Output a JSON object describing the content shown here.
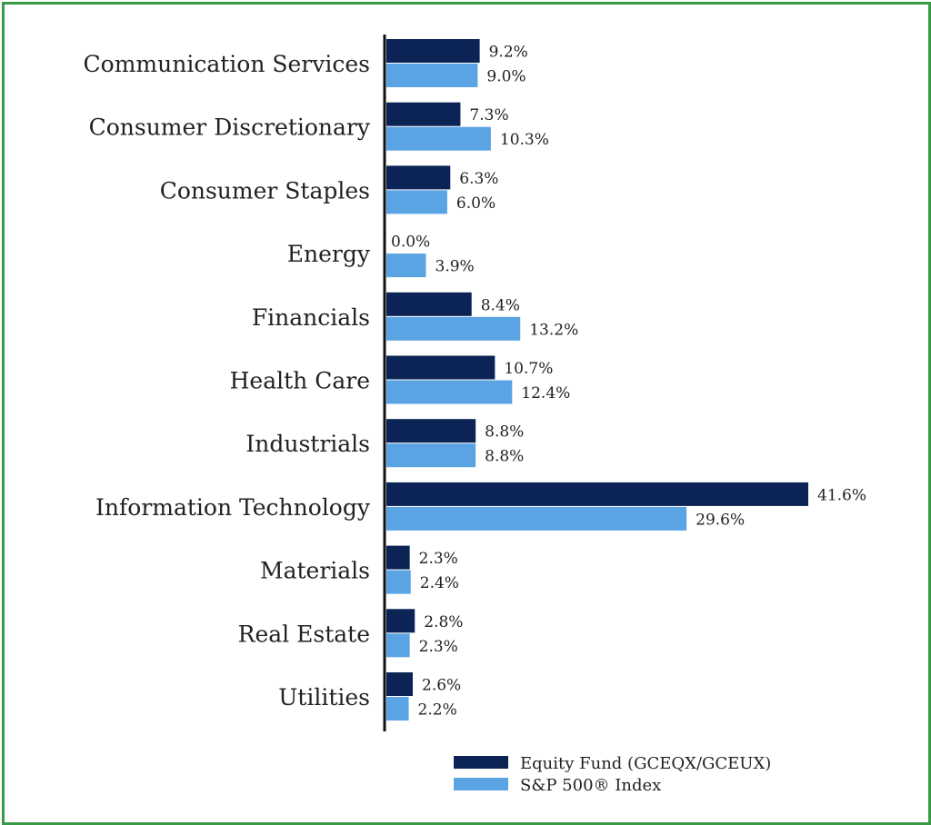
{
  "chart_data": {
    "type": "bar",
    "orientation": "horizontal",
    "categories": [
      "Communication Services",
      "Consumer Discretionary",
      "Consumer Staples",
      "Energy",
      "Financials",
      "Health Care",
      "Industrials",
      "Information Technology",
      "Materials",
      "Real Estate",
      "Utilities"
    ],
    "series": [
      {
        "name": "Equity Fund (GCEQX/GCEUX)",
        "color": "#0b2455",
        "values": [
          9.2,
          7.3,
          6.3,
          0.0,
          8.4,
          10.7,
          8.8,
          41.6,
          2.3,
          2.8,
          2.6
        ],
        "labels": [
          "9.2%",
          "7.3%",
          "6.3%",
          "0.0%",
          "8.4%",
          "10.7%",
          "8.8%",
          "41.6%",
          "2.3%",
          "2.8%",
          "2.6%"
        ]
      },
      {
        "name": "S&P 500® Index",
        "color": "#5ba4e4",
        "values": [
          9.0,
          10.3,
          6.0,
          3.9,
          13.2,
          12.4,
          8.8,
          29.6,
          2.4,
          2.3,
          2.2
        ],
        "labels": [
          "9.0%",
          "10.3%",
          "6.0%",
          "3.9%",
          "13.2%",
          "12.4%",
          "8.8%",
          "29.6%",
          "2.4%",
          "2.3%",
          "2.2%"
        ]
      }
    ],
    "xlim": [
      0,
      45
    ],
    "grid": false,
    "legend_position": "bottom-right",
    "frame_color": "#3a9a47"
  }
}
